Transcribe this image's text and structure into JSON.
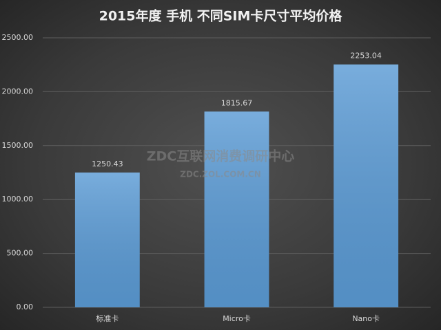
{
  "chart_data": {
    "type": "bar",
    "title": "2015年度 手机 不同SIM卡尺寸平均价格",
    "categories": [
      "标准卡",
      "Micro卡",
      "Nano卡"
    ],
    "values": [
      1250.43,
      1815.67,
      2253.04
    ],
    "color": "#5b9bd5",
    "ylim": [
      0,
      2500
    ],
    "yticks": [
      {
        "value": 0,
        "label": "0.00"
      },
      {
        "value": 500,
        "label": "500.00"
      },
      {
        "value": 1000,
        "label": "1000.00"
      },
      {
        "value": 1500,
        "label": "1500.00"
      },
      {
        "value": 2000,
        "label": "2000.00"
      },
      {
        "value": 2500,
        "label": "2500.00"
      }
    ],
    "grid": true,
    "watermark": {
      "text": "ZDC互联网消费调研中心",
      "url": "ZDC.ZOL.COM.CN"
    }
  }
}
